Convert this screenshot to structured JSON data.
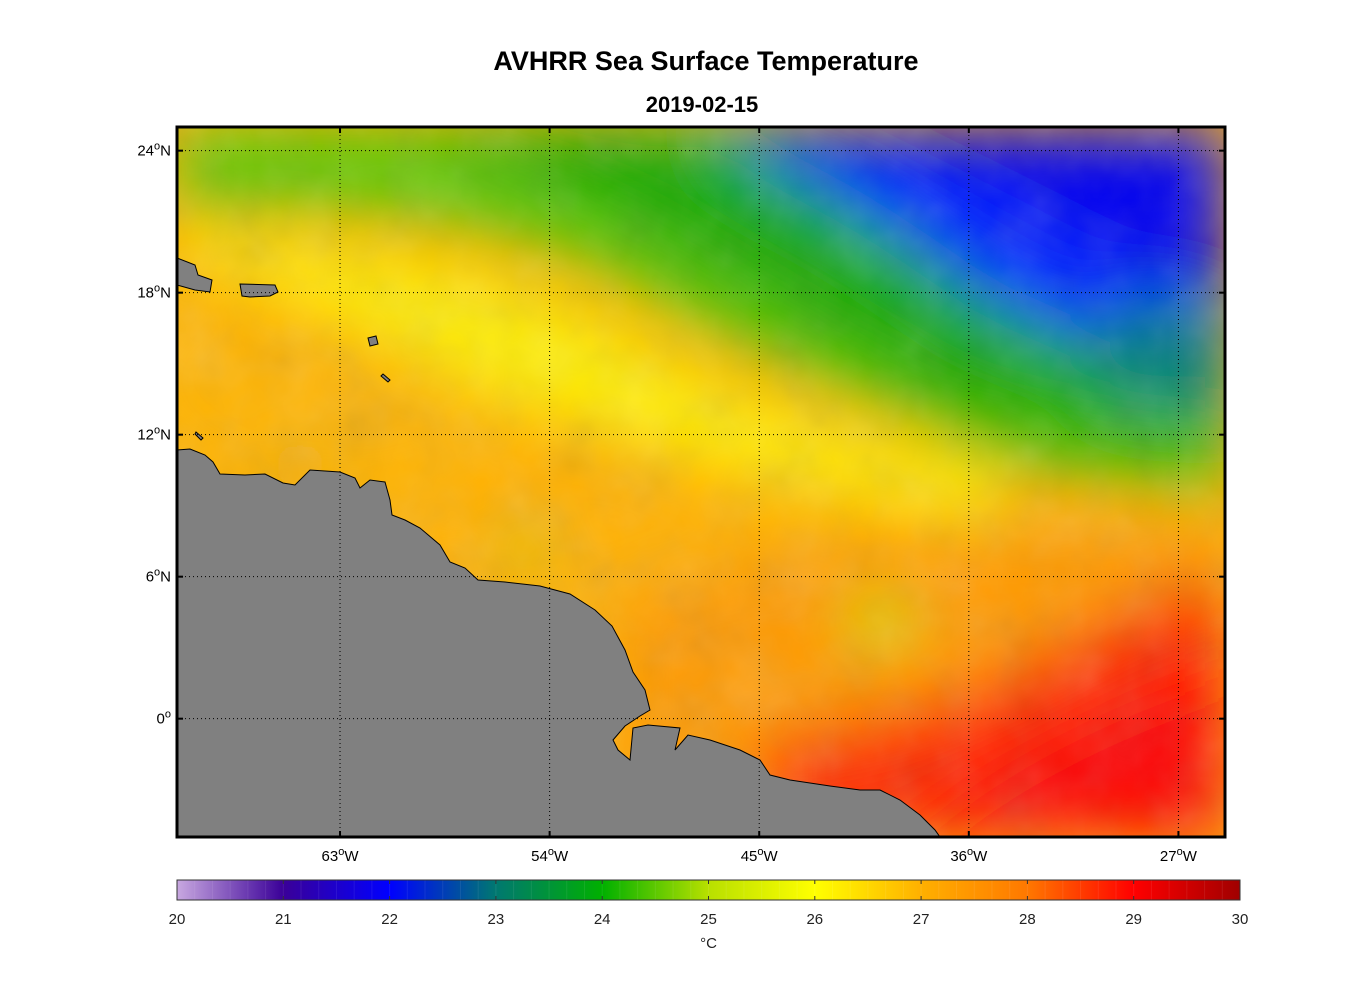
{
  "title": "AVHRR Sea Surface Temperature",
  "subtitle": "2019-02-15",
  "map": {
    "lon_range": [
      -70,
      -25
    ],
    "lat_range": [
      -5,
      25
    ],
    "lon_ticks": [
      {
        "value": -63,
        "num": "63",
        "sup": "o",
        "hem": "W"
      },
      {
        "value": -54,
        "num": "54",
        "sup": "o",
        "hem": "W"
      },
      {
        "value": -45,
        "num": "45",
        "sup": "o",
        "hem": "W"
      },
      {
        "value": -36,
        "num": "36",
        "sup": "o",
        "hem": "W"
      },
      {
        "value": -27,
        "num": "27",
        "sup": "o",
        "hem": "W"
      }
    ],
    "lat_ticks": [
      {
        "value": 24,
        "num": "24",
        "sup": "o",
        "hem": "N"
      },
      {
        "value": 18,
        "num": "18",
        "sup": "o",
        "hem": "N"
      },
      {
        "value": 12,
        "num": "12",
        "sup": "o",
        "hem": "N"
      },
      {
        "value": 6,
        "num": "6",
        "sup": "o",
        "hem": "N"
      },
      {
        "value": 0,
        "num": "0",
        "sup": "o",
        "hem": ""
      }
    ],
    "land_color": "#808080",
    "grid": "dotted"
  },
  "colorbar": {
    "min": 20,
    "max": 30,
    "ticks": [
      "20",
      "21",
      "22",
      "23",
      "24",
      "25",
      "26",
      "27",
      "28",
      "29",
      "30"
    ],
    "unit": "°C",
    "stops": [
      "#c8a8e0",
      "#3a0098",
      "#0000ff",
      "#007870",
      "#00b000",
      "#b8e000",
      "#ffff00",
      "#ffb000",
      "#ff7800",
      "#ff0000",
      "#a00000"
    ]
  }
}
